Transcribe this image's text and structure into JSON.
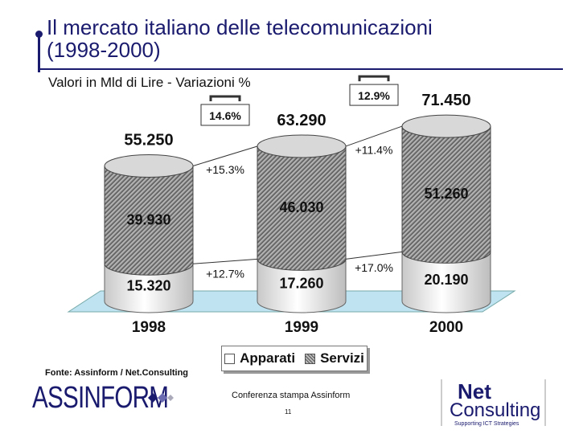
{
  "header": {
    "title_line1": "Il mercato italiano delle telecomunicazioni",
    "title_line2": "(1998-2000)",
    "subtitle": "Valori in Mld di Lire - Variazioni %"
  },
  "footer": {
    "source": "Fonte: Assinform / Net.Consulting",
    "conference": "Conferenza stampa Assinform",
    "page_number": "11",
    "logo_left": "ASSINFORM",
    "logo_right_line1": "Net",
    "logo_right_line2": "Consulting",
    "logo_right_tagline": "Supporting ICT Strategies"
  },
  "colors": {
    "title": "#1a1a6e",
    "floor": "#bfe3f0",
    "apparati_fill": "#f2f2f2",
    "servizi_fill": "#9a9a9a"
  },
  "chart_data": {
    "type": "bar",
    "stacked": true,
    "categories": [
      "1998",
      "1999",
      "2000"
    ],
    "series": [
      {
        "name": "Apparati",
        "values": [
          15320,
          17260,
          20190
        ],
        "labels": [
          "15.320",
          "17.260",
          "20.190"
        ]
      },
      {
        "name": "Servizi",
        "values": [
          39930,
          46030,
          51260
        ],
        "labels": [
          "39.930",
          "46.030",
          "51.260"
        ]
      }
    ],
    "totals": {
      "values": [
        55250,
        63290,
        71450
      ],
      "labels": [
        "55.250",
        "63.290",
        "71.450"
      ]
    },
    "growth": {
      "apparati": [
        "+12.7%",
        "+17.0%"
      ],
      "servizi": [
        "+15.3%",
        "+11.4%"
      ],
      "totale": [
        "14.6%",
        "12.9%"
      ]
    },
    "legend": [
      "Apparati",
      "Servizi"
    ],
    "legend_position": "bottom"
  }
}
